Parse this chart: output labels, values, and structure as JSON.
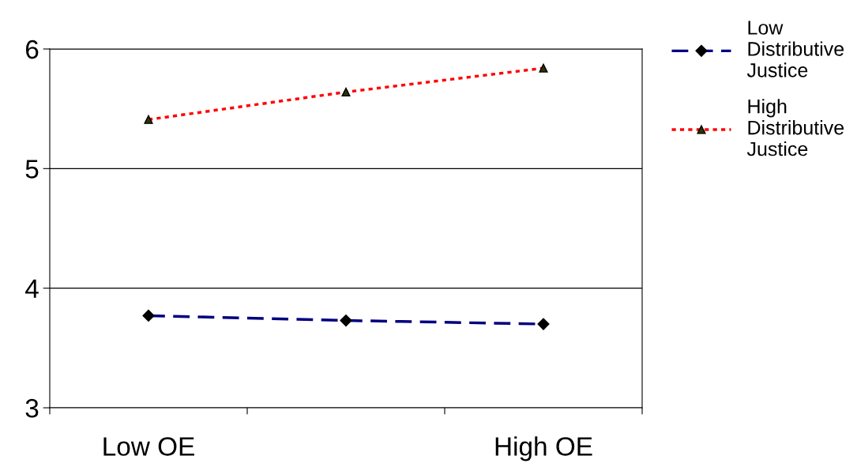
{
  "chart_data": {
    "type": "line",
    "categories": [
      "Low OE",
      null,
      "High OE"
    ],
    "series": [
      {
        "name": "Low Distributive Justice",
        "color": "#000080",
        "values": [
          3.77,
          3.73,
          3.7
        ],
        "marker": "diamond",
        "line_style": "dashed"
      },
      {
        "name": "High Distributive Justice",
        "color": "#ff0000",
        "values": [
          5.41,
          5.64,
          5.84
        ],
        "marker": "triangle",
        "line_style": "dotted"
      }
    ],
    "ylim": [
      3,
      6
    ],
    "yticks": [
      3,
      4,
      5,
      6
    ],
    "grid": "y",
    "legend": "right"
  }
}
